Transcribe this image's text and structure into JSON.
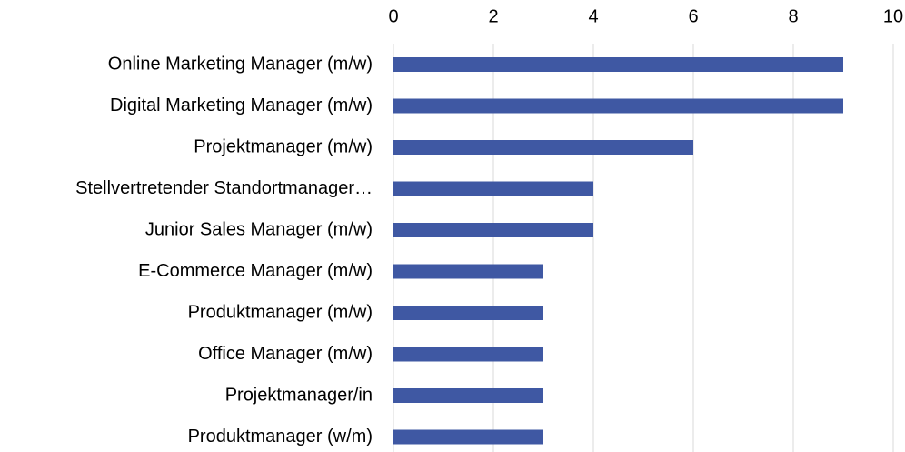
{
  "chart_data": {
    "type": "barh",
    "categories": [
      "Online Marketing Manager (m/w)",
      "Digital Marketing Manager (m/w)",
      "Projektmanager (m/w)",
      "Stellvertretender Standortmanager…",
      "Junior Sales Manager (m/w)",
      "E-Commerce Manager (m/w)",
      "Produktmanager (m/w)",
      "Office Manager (m/w)",
      "Projektmanager/in",
      "Produktmanager (w/m)"
    ],
    "values": [
      9,
      9,
      6,
      4,
      4,
      3,
      3,
      3,
      3,
      3
    ],
    "color": "#3f58a3",
    "xlim": [
      0,
      10
    ],
    "xticks": [
      0,
      2,
      4,
      6,
      8,
      10
    ],
    "grid": true
  }
}
